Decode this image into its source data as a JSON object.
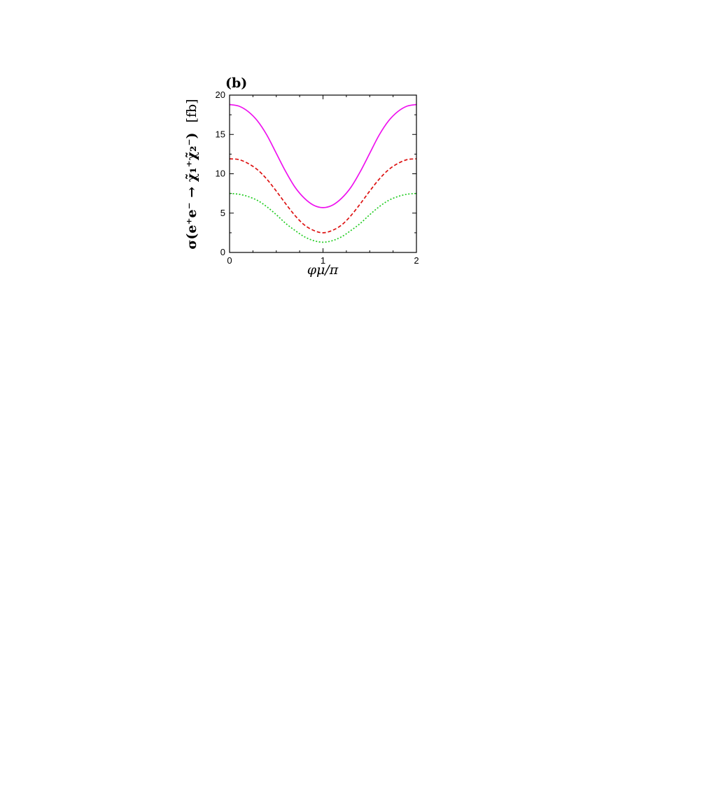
{
  "chart_data": {
    "type": "line",
    "panel_label": "(b)",
    "xlabel": "φμ/π",
    "ylabel": "σ(e⁺e⁻ → χ̃₁⁺χ̃₂⁻)",
    "ylabel_unit": "[fb]",
    "xlim": [
      0,
      2
    ],
    "ylim": [
      0,
      20
    ],
    "x_ticks": [
      0,
      1,
      2
    ],
    "y_ticks": [
      0,
      5,
      10,
      15,
      20
    ],
    "grid": false,
    "legend": "none",
    "x": [
      0,
      0.1,
      0.2,
      0.3,
      0.4,
      0.5,
      0.6,
      0.7,
      0.8,
      0.9,
      1.0,
      1.1,
      1.2,
      1.3,
      1.4,
      1.5,
      1.6,
      1.7,
      1.8,
      1.9,
      2.0
    ],
    "series": [
      {
        "color": "#ee11ee",
        "style": "solid",
        "values": [
          18.8,
          18.6,
          17.9,
          16.7,
          14.9,
          12.6,
          10.3,
          8.3,
          6.9,
          6.0,
          5.7,
          6.0,
          6.9,
          8.3,
          10.3,
          12.6,
          14.9,
          16.7,
          17.9,
          18.6,
          18.8
        ]
      },
      {
        "color": "#dd1111",
        "style": "dashed",
        "values": [
          11.9,
          11.8,
          11.3,
          10.5,
          9.3,
          7.8,
          6.2,
          4.7,
          3.5,
          2.8,
          2.5,
          2.8,
          3.5,
          4.7,
          6.2,
          7.8,
          9.3,
          10.5,
          11.3,
          11.8,
          11.9
        ]
      },
      {
        "color": "#22cc22",
        "style": "dotted",
        "values": [
          7.5,
          7.4,
          7.1,
          6.6,
          5.8,
          4.8,
          3.7,
          2.8,
          2.0,
          1.5,
          1.3,
          1.5,
          2.0,
          2.8,
          3.7,
          4.8,
          5.8,
          6.6,
          7.1,
          7.4,
          7.5
        ]
      }
    ]
  }
}
